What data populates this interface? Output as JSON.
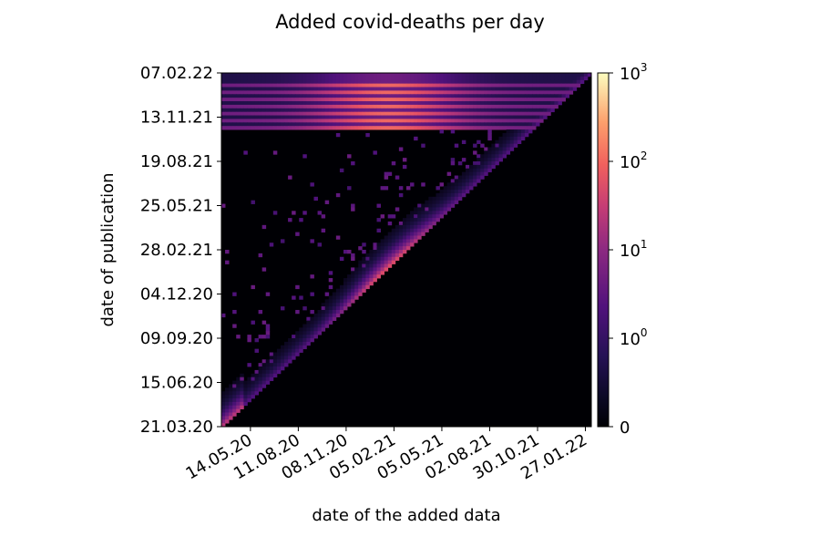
{
  "chart_data": {
    "type": "heatmap",
    "title": "Added covid-deaths per day",
    "xlabel": "date of the added data",
    "ylabel": "date of publication",
    "colormap": "magma",
    "color_scale": "symlog",
    "x_ticks": [
      "14.05.20",
      "11.08.20",
      "08.11.20",
      "05.02.21",
      "05.05.21",
      "02.08.21",
      "30.10.21",
      "27.01.22"
    ],
    "y_ticks": [
      "21.03.20",
      "15.06.20",
      "09.09.20",
      "04.12.20",
      "28.02.21",
      "25.05.21",
      "19.08.21",
      "13.11.21",
      "07.02.22"
    ],
    "xlim": [
      "21.03.20",
      "07.02.22"
    ],
    "ylim": [
      "21.03.20",
      "07.02.22"
    ],
    "colorbar": {
      "range": [
        0,
        1000
      ],
      "ticks": [
        {
          "value": 0,
          "base": "0",
          "exp": ""
        },
        {
          "value": 1,
          "base": "10",
          "exp": "0"
        },
        {
          "value": 10,
          "base": "10",
          "exp": "1"
        },
        {
          "value": 100,
          "base": "10",
          "exp": "2"
        },
        {
          "value": 1000,
          "base": "10",
          "exp": "3"
        }
      ]
    },
    "structure": {
      "empty_region": "x > y (below diagonal)",
      "diagonal_values": "highest near diagonal, peaking ~10-30 around Dec 2020 - Feb 2021",
      "high_band_publications": "Oct 2021 - Feb 2022 rows with values up to ~100",
      "grid": false
    }
  }
}
